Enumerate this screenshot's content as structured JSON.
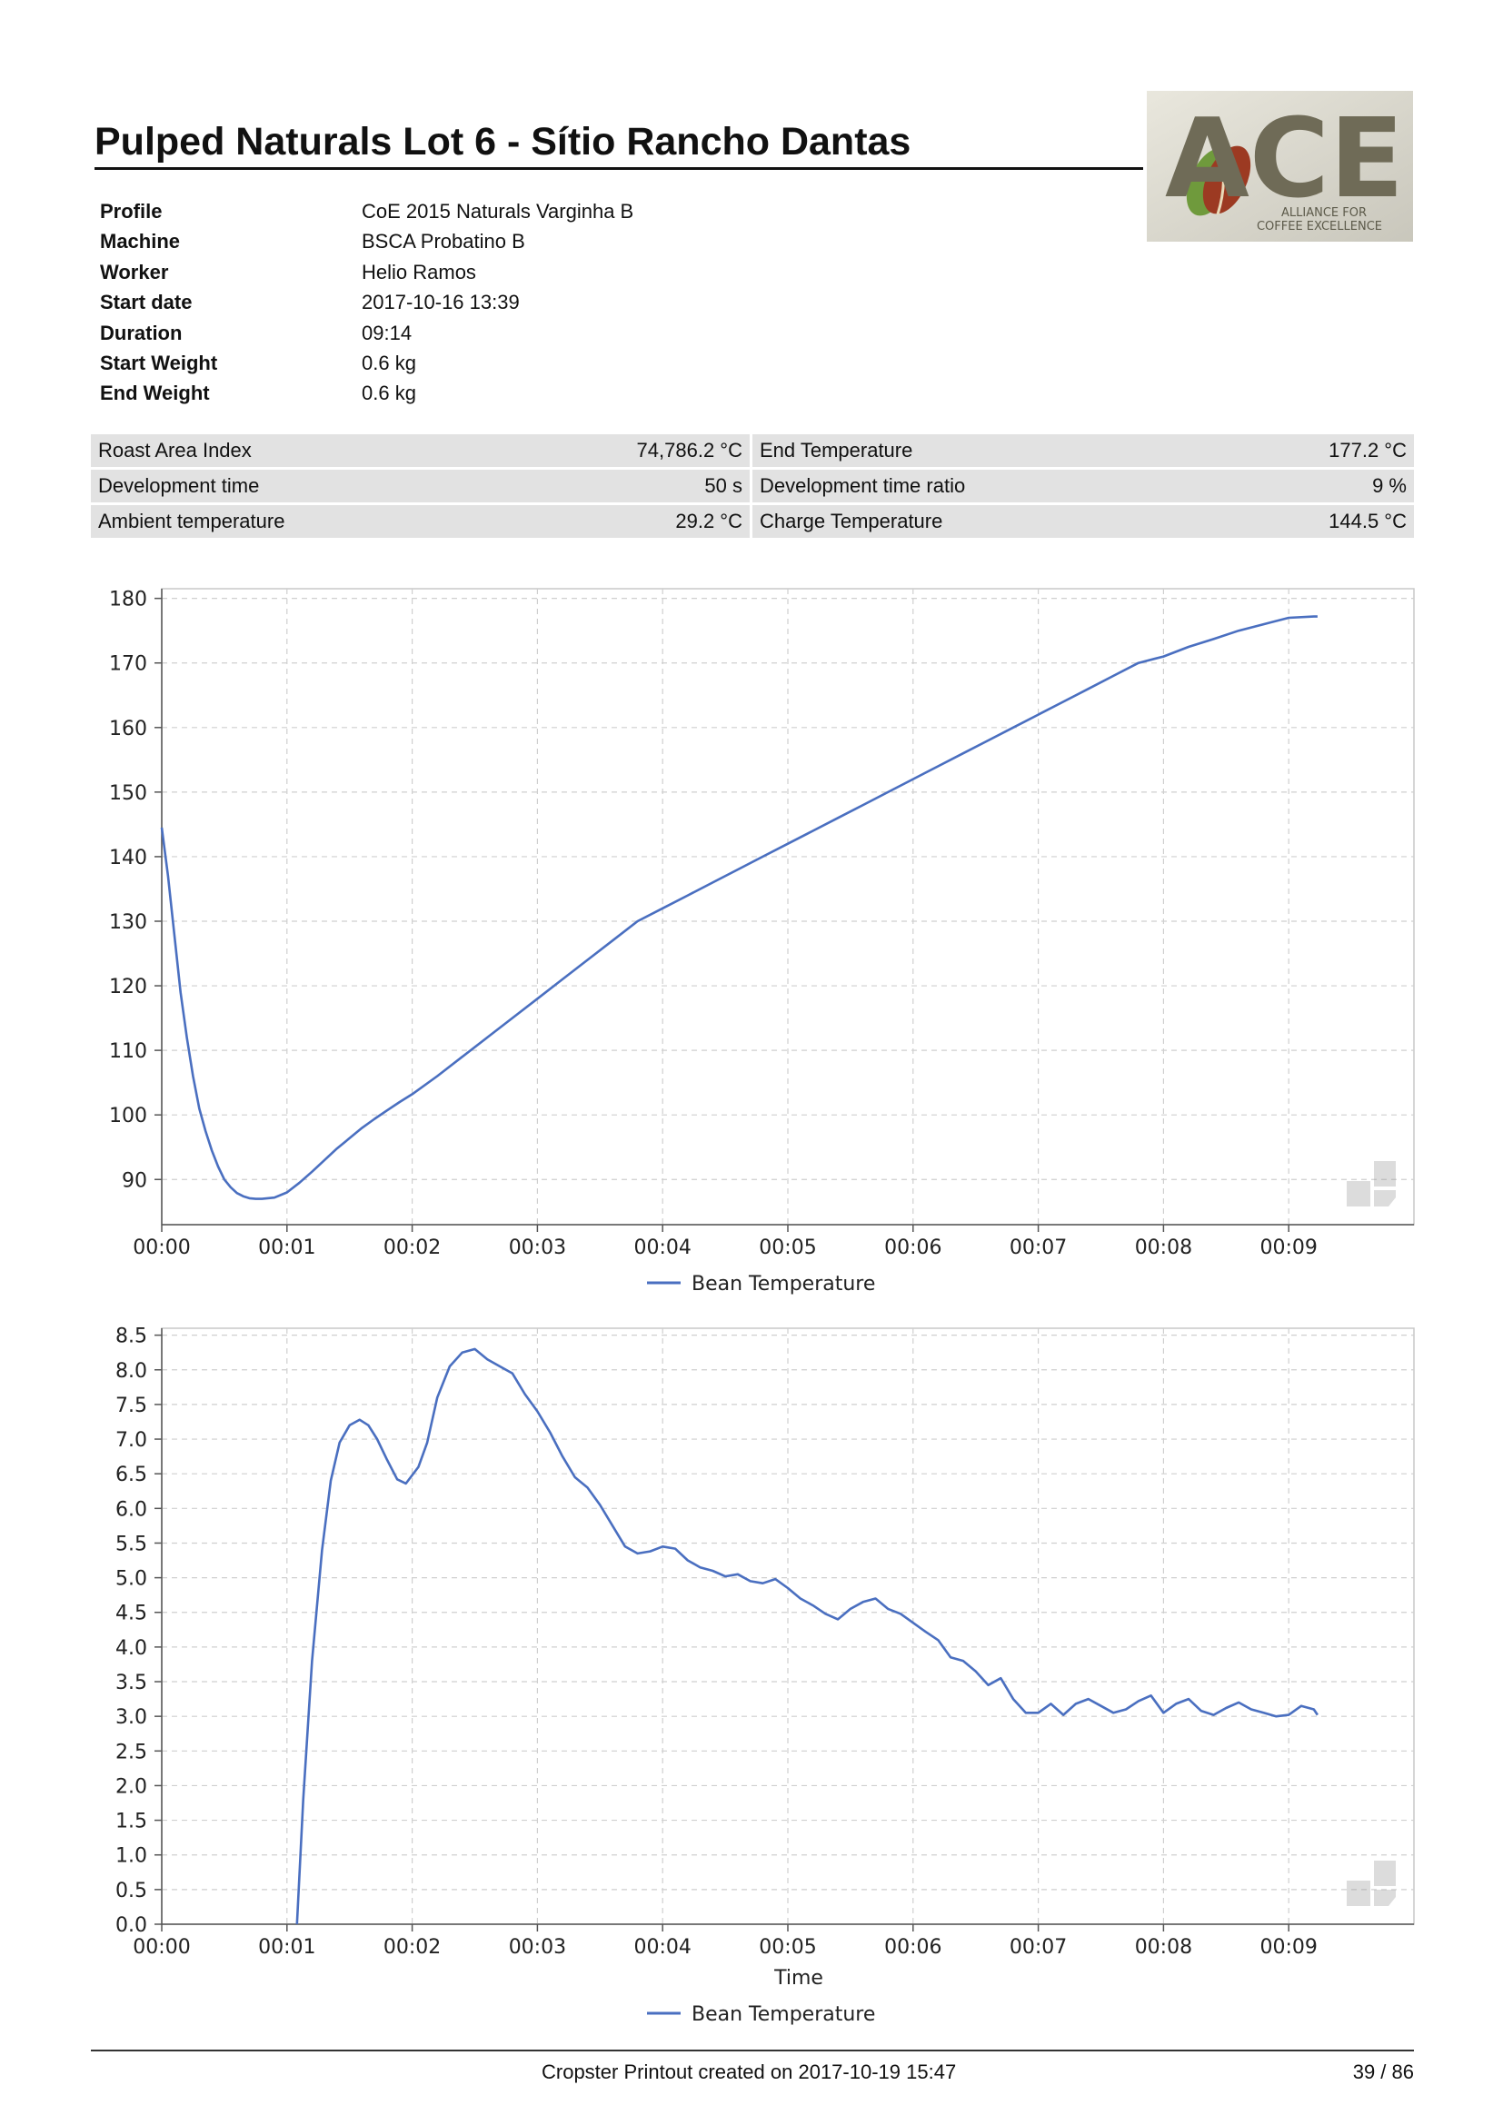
{
  "title": "Pulped Naturals Lot 6 - Sítio Rancho Dantas",
  "logo": {
    "text": "ACE",
    "subtitle": [
      "ALLIANCE FOR",
      "COFFEE EXCELLENCE"
    ]
  },
  "meta": [
    {
      "key": "Profile",
      "value": "CoE 2015 Naturals Varginha B"
    },
    {
      "key": "Machine",
      "value": "BSCA Probatino B"
    },
    {
      "key": "Worker",
      "value": "Helio Ramos"
    },
    {
      "key": "Start date",
      "value": "2017-10-16 13:39"
    },
    {
      "key": "Duration",
      "value": "09:14"
    },
    {
      "key": "Start Weight",
      "value": "0.6 kg"
    },
    {
      "key": "End Weight",
      "value": "0.6 kg"
    }
  ],
  "stats": [
    [
      {
        "label": "Roast Area Index",
        "value": "74,786.2 °C"
      },
      {
        "label": "End Temperature",
        "value": "177.2 °C"
      }
    ],
    [
      {
        "label": "Development time",
        "value": "50 s"
      },
      {
        "label": "Development time ratio",
        "value": "9 %"
      }
    ],
    [
      {
        "label": "Ambient temperature",
        "value": "29.2 °C"
      },
      {
        "label": "Charge Temperature",
        "value": "144.5 °C"
      }
    ]
  ],
  "chart_data": [
    {
      "type": "line",
      "title": "",
      "xlabel": "",
      "ylabel": "",
      "xlim": [
        0,
        10
      ],
      "ylim": [
        83,
        181.5
      ],
      "x_ticks": [
        0,
        1,
        2,
        3,
        4,
        5,
        6,
        7,
        8,
        9
      ],
      "x_tick_labels": [
        "00:00",
        "00:01",
        "00:02",
        "00:03",
        "00:04",
        "00:05",
        "00:06",
        "00:07",
        "00:08",
        "00:09"
      ],
      "y_ticks": [
        90,
        100,
        110,
        120,
        130,
        140,
        150,
        160,
        170,
        180
      ],
      "grid": true,
      "legend": "bottom-center",
      "color": "#4a6fc0",
      "series": [
        {
          "name": "Bean Temperature",
          "x": [
            0,
            0.05,
            0.1,
            0.15,
            0.2,
            0.25,
            0.3,
            0.35,
            0.4,
            0.45,
            0.5,
            0.55,
            0.6,
            0.65,
            0.7,
            0.75,
            0.8,
            0.9,
            1.0,
            1.1,
            1.2,
            1.3,
            1.4,
            1.5,
            1.6,
            1.7,
            1.8,
            1.9,
            2.0,
            2.2,
            2.4,
            2.6,
            2.8,
            3.0,
            3.2,
            3.4,
            3.6,
            3.8,
            4.0,
            4.2,
            4.4,
            4.6,
            4.8,
            5.0,
            5.2,
            5.4,
            5.6,
            5.8,
            6.0,
            6.2,
            6.4,
            6.6,
            6.8,
            7.0,
            7.2,
            7.4,
            7.6,
            7.8,
            8.0,
            8.2,
            8.4,
            8.6,
            8.8,
            9.0,
            9.2,
            9.23
          ],
          "values": [
            144.5,
            137,
            128,
            119,
            112,
            106,
            101,
            97.5,
            94.5,
            92,
            90,
            88.8,
            87.9,
            87.4,
            87.1,
            87.0,
            87.0,
            87.2,
            88,
            89.5,
            91.2,
            93,
            94.8,
            96.4,
            98,
            99.4,
            100.7,
            102,
            103.2,
            106,
            109,
            112,
            115,
            118,
            121,
            124,
            127,
            130,
            132,
            134,
            136,
            138,
            140,
            142,
            144,
            146,
            148,
            150,
            152,
            154,
            156,
            158,
            160,
            162,
            164,
            166,
            168,
            170,
            171,
            172.5,
            173.7,
            175,
            176,
            177,
            177.2,
            177.2
          ]
        }
      ]
    },
    {
      "type": "line",
      "title": "",
      "xlabel": "Time",
      "ylabel": "",
      "xlim": [
        0,
        10
      ],
      "ylim": [
        0,
        8.6
      ],
      "x_ticks": [
        0,
        1,
        2,
        3,
        4,
        5,
        6,
        7,
        8,
        9
      ],
      "x_tick_labels": [
        "00:00",
        "00:01",
        "00:02",
        "00:03",
        "00:04",
        "00:05",
        "00:06",
        "00:07",
        "00:08",
        "00:09"
      ],
      "y_ticks": [
        0.0,
        0.5,
        1.0,
        1.5,
        2.0,
        2.5,
        3.0,
        3.5,
        4.0,
        4.5,
        5.0,
        5.5,
        6.0,
        6.5,
        7.0,
        7.5,
        8.0,
        8.5
      ],
      "y_tick_labels": [
        "0.0",
        "0.5",
        "1.0",
        "1.5",
        "2.0",
        "2.5",
        "3.0",
        "3.5",
        "4.0",
        "4.5",
        "5.0",
        "5.5",
        "6.0",
        "6.5",
        "7.0",
        "7.5",
        "8.0",
        "8.5"
      ],
      "grid": true,
      "legend": "bottom-center",
      "color": "#4a6fc0",
      "series": [
        {
          "name": "Bean Temperature",
          "x": [
            1.08,
            1.13,
            1.2,
            1.28,
            1.35,
            1.42,
            1.5,
            1.58,
            1.65,
            1.72,
            1.8,
            1.88,
            1.95,
            2.05,
            2.12,
            2.2,
            2.3,
            2.4,
            2.5,
            2.6,
            2.7,
            2.8,
            2.9,
            3.0,
            3.1,
            3.2,
            3.3,
            3.4,
            3.5,
            3.6,
            3.7,
            3.8,
            3.9,
            4.0,
            4.1,
            4.2,
            4.3,
            4.4,
            4.5,
            4.6,
            4.7,
            4.8,
            4.9,
            5.0,
            5.1,
            5.2,
            5.3,
            5.4,
            5.5,
            5.6,
            5.7,
            5.8,
            5.9,
            6.0,
            6.1,
            6.2,
            6.3,
            6.4,
            6.5,
            6.6,
            6.7,
            6.8,
            6.9,
            7.0,
            7.1,
            7.2,
            7.3,
            7.4,
            7.5,
            7.6,
            7.7,
            7.8,
            7.9,
            8.0,
            8.1,
            8.2,
            8.3,
            8.4,
            8.5,
            8.6,
            8.7,
            8.8,
            8.9,
            9.0,
            9.1,
            9.2,
            9.23
          ],
          "values": [
            0.0,
            1.8,
            3.8,
            5.4,
            6.4,
            6.95,
            7.2,
            7.28,
            7.2,
            7.0,
            6.7,
            6.42,
            6.36,
            6.6,
            6.95,
            7.6,
            8.05,
            8.25,
            8.3,
            8.15,
            8.05,
            7.95,
            7.65,
            7.4,
            7.1,
            6.75,
            6.45,
            6.3,
            6.05,
            5.75,
            5.45,
            5.35,
            5.38,
            5.45,
            5.42,
            5.25,
            5.15,
            5.1,
            5.02,
            5.05,
            4.95,
            4.92,
            4.98,
            4.85,
            4.7,
            4.6,
            4.48,
            4.4,
            4.55,
            4.65,
            4.7,
            4.55,
            4.48,
            4.35,
            4.22,
            4.1,
            3.85,
            3.8,
            3.65,
            3.45,
            3.55,
            3.25,
            3.05,
            3.05,
            3.18,
            3.02,
            3.18,
            3.25,
            3.15,
            3.05,
            3.1,
            3.22,
            3.3,
            3.05,
            3.18,
            3.25,
            3.08,
            3.02,
            3.12,
            3.2,
            3.1,
            3.05,
            3.0,
            3.02,
            3.15,
            3.1,
            3.02
          ]
        }
      ]
    }
  ],
  "footer": {
    "text": "Cropster Printout created on 2017-10-19 15:47",
    "page": "39 / 86"
  }
}
